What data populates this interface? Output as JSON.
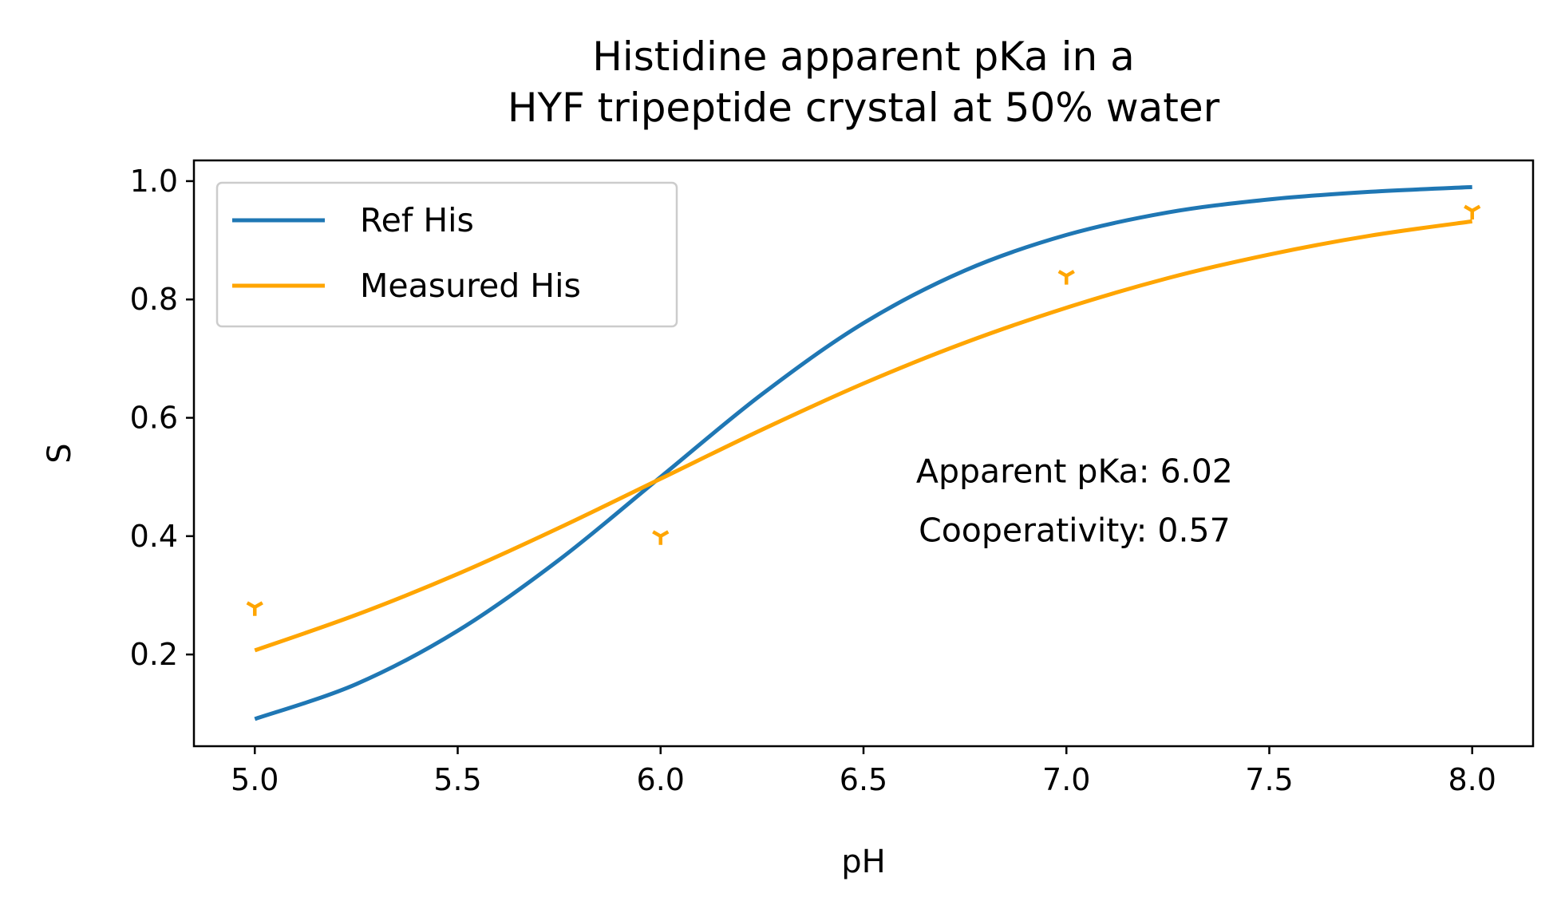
{
  "chart_data": {
    "type": "line",
    "title_lines": [
      "Histidine apparent pKa in a",
      "HYF tripeptide crystal at 50% water"
    ],
    "xlabel": "pH",
    "ylabel": "S",
    "xlim": [
      4.85,
      8.15
    ],
    "ylim": [
      0.045,
      1.035
    ],
    "xticks": [
      5.0,
      5.5,
      6.0,
      6.5,
      7.0,
      7.5,
      8.0
    ],
    "xtick_labels": [
      "5.0",
      "5.5",
      "6.0",
      "6.5",
      "7.0",
      "7.5",
      "8.0"
    ],
    "yticks": [
      0.2,
      0.4,
      0.6,
      0.8,
      1.0
    ],
    "ytick_labels": [
      "0.2",
      "0.4",
      "0.6",
      "0.8",
      "1.0"
    ],
    "grid": false,
    "legend_position": "top-left",
    "series": [
      {
        "name": "Ref His",
        "kind": "line",
        "color": "#1f77b4",
        "x": [
          5.0,
          5.25,
          5.5,
          5.75,
          6.0,
          6.25,
          6.5,
          6.75,
          7.0,
          7.25,
          7.5,
          7.75,
          8.0
        ],
        "y": [
          0.091,
          0.15,
          0.24,
          0.36,
          0.5,
          0.64,
          0.76,
          0.849,
          0.909,
          0.947,
          0.969,
          0.982,
          0.99
        ]
      },
      {
        "name": "Measured His",
        "kind": "line",
        "color": "#ffa500",
        "x": [
          5.0,
          5.25,
          5.5,
          5.75,
          6.0,
          6.25,
          6.5,
          6.75,
          7.0,
          7.25,
          7.5,
          7.75,
          8.0
        ],
        "y": [
          0.207,
          0.267,
          0.336,
          0.414,
          0.497,
          0.58,
          0.658,
          0.727,
          0.786,
          0.836,
          0.876,
          0.908,
          0.932
        ]
      },
      {
        "kind": "markers",
        "marker": "tri_down",
        "color": "#ffa500",
        "x": [
          5.0,
          6.0,
          7.0,
          8.0
        ],
        "y": [
          0.28,
          0.4,
          0.84,
          0.95
        ]
      }
    ],
    "annotation_lines": [
      "Apparent pKa: 6.02",
      "Cooperativity: 0.57"
    ],
    "annotation_position": {
      "x": 7.02,
      "y": 0.445
    }
  }
}
